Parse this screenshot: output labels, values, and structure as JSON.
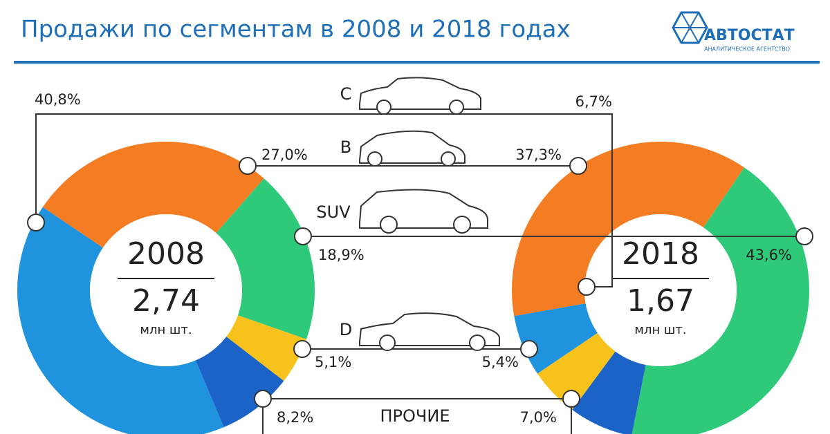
{
  "header": {
    "title": "Продажи по сегментам в 2008 и 2018 годах",
    "logo": "АВТОСТАТ",
    "logo_subtitle": "АНАЛИТИЧЕСКОЕ АГЕНТСТВО"
  },
  "chart_data": [
    {
      "type": "donut",
      "center_title": "2008",
      "center_value": "2,74",
      "center_unit": "млн шт.",
      "categories": [
        "C",
        "B",
        "SUV",
        "D",
        "ПРОЧИЕ"
      ],
      "values": [
        40.8,
        27.0,
        18.9,
        5.1,
        8.2
      ],
      "value_labels": [
        "40,8%",
        "27,0%",
        "18,9%",
        "5,1%",
        "8,2%"
      ],
      "colors": [
        "#1f93dd",
        "#f47c22",
        "#2fc97a",
        "#f7c21c",
        "#1b63c6"
      ]
    },
    {
      "type": "donut",
      "center_title": "2018",
      "center_value": "1,67",
      "center_unit": "млн шт.",
      "categories": [
        "C",
        "B",
        "SUV",
        "D",
        "ПРОЧИЕ"
      ],
      "values": [
        6.7,
        37.3,
        43.6,
        5.4,
        7.0
      ],
      "value_labels": [
        "6,7%",
        "37,3%",
        "43,6%",
        "5,4%",
        "7,0%"
      ],
      "colors": [
        "#1f93dd",
        "#f47c22",
        "#2fc97a",
        "#f7c21c",
        "#1b63c6"
      ]
    }
  ]
}
